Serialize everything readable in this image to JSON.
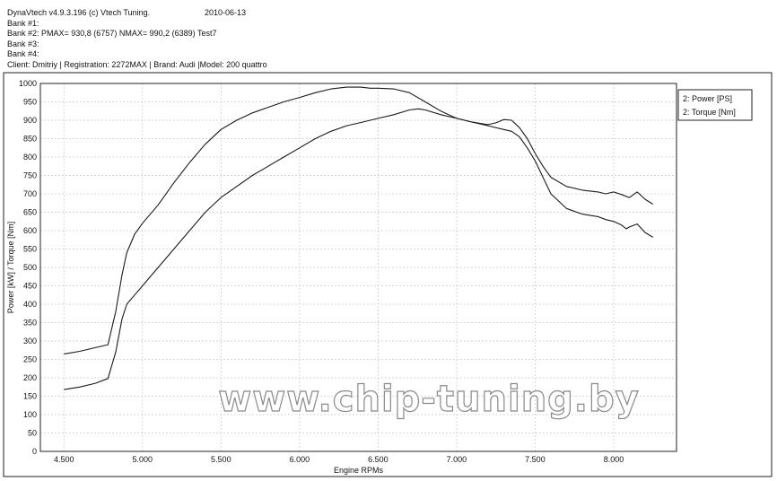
{
  "header": {
    "software": "DynaVtech v4.9.3.196 (c) Vtech Tuning.",
    "date": "2010-06-13",
    "bank1": "Bank #1:",
    "bank2": "Bank #2:  PMAX= 930,8 (6757)     NMAX= 990,2 (6389)   Test7",
    "bank3": "Bank #3:",
    "bank4": "Bank #4:",
    "client": "Client:  Dmitriy | Registration:  2272MAX | Brand: Audi |Model: 200 quattro"
  },
  "watermark": "www.chip-tuning.by",
  "chart_data": {
    "type": "line",
    "xlabel": "Engine RPMs",
    "ylabel": "Power [kW] / Torque [Nm]",
    "xlim": [
      4350,
      8400
    ],
    "ylim": [
      0,
      1000
    ],
    "x_ticks": [
      4500,
      5000,
      5500,
      6000,
      6500,
      7000,
      7500,
      8000
    ],
    "x_tick_labels": [
      "4.500",
      "5.000",
      "5.500",
      "6.000",
      "6.500",
      "7.000",
      "7.500",
      "8.000"
    ],
    "y_ticks": [
      0,
      50,
      100,
      150,
      200,
      250,
      300,
      350,
      400,
      450,
      500,
      550,
      600,
      650,
      700,
      750,
      800,
      850,
      900,
      950,
      1000
    ],
    "y_tick_labels": [
      "0",
      "50",
      "100",
      "150",
      "200",
      "250",
      "300",
      "350",
      "400",
      "450",
      "500",
      "550",
      "600",
      "650",
      "700",
      "750",
      "800",
      "850",
      "900",
      "950",
      "1000"
    ],
    "grid": true,
    "legend_position": "top-right",
    "series": [
      {
        "name": "2: Power [PS]",
        "x": [
          4500,
          4600,
          4700,
          4780,
          4830,
          4870,
          4900,
          4950,
          5000,
          5100,
          5200,
          5300,
          5400,
          5500,
          5600,
          5700,
          5800,
          5900,
          6000,
          6100,
          6200,
          6300,
          6400,
          6500,
          6600,
          6700,
          6757,
          6800,
          6900,
          7000,
          7100,
          7200,
          7300,
          7350,
          7400,
          7450,
          7500,
          7550,
          7600,
          7700,
          7800,
          7900,
          7950,
          8000,
          8050,
          8080,
          8100,
          8150,
          8200,
          8250
        ],
        "y": [
          168,
          175,
          185,
          198,
          270,
          360,
          400,
          425,
          450,
          500,
          550,
          600,
          650,
          690,
          720,
          750,
          775,
          800,
          825,
          850,
          870,
          885,
          895,
          905,
          915,
          928,
          931,
          928,
          915,
          905,
          895,
          885,
          875,
          870,
          855,
          825,
          790,
          745,
          700,
          660,
          645,
          638,
          630,
          625,
          615,
          605,
          610,
          618,
          595,
          582
        ]
      },
      {
        "name": "2: Torque [Nm]",
        "x": [
          4500,
          4600,
          4700,
          4780,
          4830,
          4870,
          4900,
          4950,
          5000,
          5100,
          5200,
          5300,
          5400,
          5500,
          5600,
          5700,
          5800,
          5900,
          6000,
          6100,
          6200,
          6300,
          6389,
          6450,
          6500,
          6600,
          6700,
          6800,
          6900,
          7000,
          7100,
          7200,
          7250,
          7300,
          7350,
          7400,
          7450,
          7500,
          7550,
          7600,
          7700,
          7800,
          7900,
          7950,
          8000,
          8050,
          8100,
          8150,
          8200,
          8250
        ],
        "y": [
          265,
          272,
          282,
          290,
          380,
          480,
          540,
          590,
          620,
          670,
          730,
          785,
          835,
          875,
          900,
          920,
          935,
          950,
          962,
          975,
          985,
          990,
          990,
          987,
          987,
          985,
          975,
          950,
          925,
          905,
          895,
          888,
          893,
          902,
          900,
          880,
          850,
          810,
          775,
          745,
          720,
          710,
          705,
          700,
          705,
          698,
          690,
          705,
          685,
          672
        ]
      }
    ]
  }
}
